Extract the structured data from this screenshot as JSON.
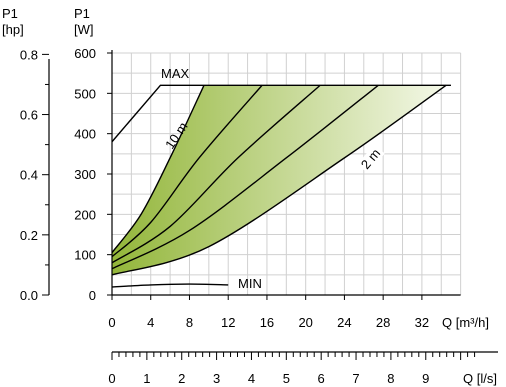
{
  "chart_data": {
    "type": "line",
    "axis_titles": {
      "p1_hp": [
        "P1",
        "[hp]"
      ],
      "p1_w": [
        "P1",
        "[W]"
      ],
      "q_m3h": "Q [m³/h]",
      "q_ls": "Q [l/s]"
    },
    "y_watts": {
      "ylim": [
        0,
        600
      ],
      "ticks": [
        "0",
        "100",
        "200",
        "300",
        "400",
        "500",
        "600"
      ]
    },
    "y_hp": {
      "ylim": [
        0,
        0.8
      ],
      "ticks": [
        "0.0",
        "0.2",
        "0.4",
        "0.6",
        "0.8"
      ]
    },
    "x_m3h": {
      "xlim": [
        0,
        38
      ],
      "ticks": [
        "0",
        "4",
        "8",
        "12",
        "16",
        "20",
        "24",
        "28",
        "32"
      ]
    },
    "x_ls": {
      "xlim": [
        0,
        10.5
      ],
      "ticks": [
        "0",
        "1",
        "2",
        "3",
        "4",
        "5",
        "6",
        "7",
        "8",
        "9"
      ]
    },
    "grid": true,
    "annotations": {
      "max": "MAX",
      "min": "MIN",
      "ten_m": "10 m",
      "two_m": "2 m"
    },
    "max_curve": [
      [
        0,
        380
      ],
      [
        5,
        520
      ],
      [
        35,
        520
      ]
    ],
    "min_curve": [
      [
        0,
        20
      ],
      [
        4,
        25
      ],
      [
        8,
        27
      ],
      [
        12,
        25
      ]
    ],
    "head_curves": [
      {
        "label": "10 m",
        "points": [
          [
            0,
            105
          ],
          [
            3,
            200
          ],
          [
            6,
            340
          ],
          [
            9.5,
            520
          ]
        ]
      },
      {
        "label": "",
        "points": [
          [
            0,
            95
          ],
          [
            4,
            180
          ],
          [
            9,
            340
          ],
          [
            15.5,
            520
          ]
        ]
      },
      {
        "label": "",
        "points": [
          [
            0,
            80
          ],
          [
            6,
            170
          ],
          [
            13,
            340
          ],
          [
            21.5,
            520
          ]
        ]
      },
      {
        "label": "",
        "points": [
          [
            0,
            65
          ],
          [
            8,
            160
          ],
          [
            18,
            340
          ],
          [
            27.5,
            520
          ]
        ]
      },
      {
        "label": "2 m",
        "points": [
          [
            0,
            50
          ],
          [
            10,
            120
          ],
          [
            24,
            340
          ],
          [
            34.5,
            520
          ]
        ]
      }
    ],
    "colors": {
      "fill_dark": "#93b63a",
      "fill_light": "#f4f8e8",
      "curve": "#000000",
      "grid": "#d0d0d0"
    }
  }
}
